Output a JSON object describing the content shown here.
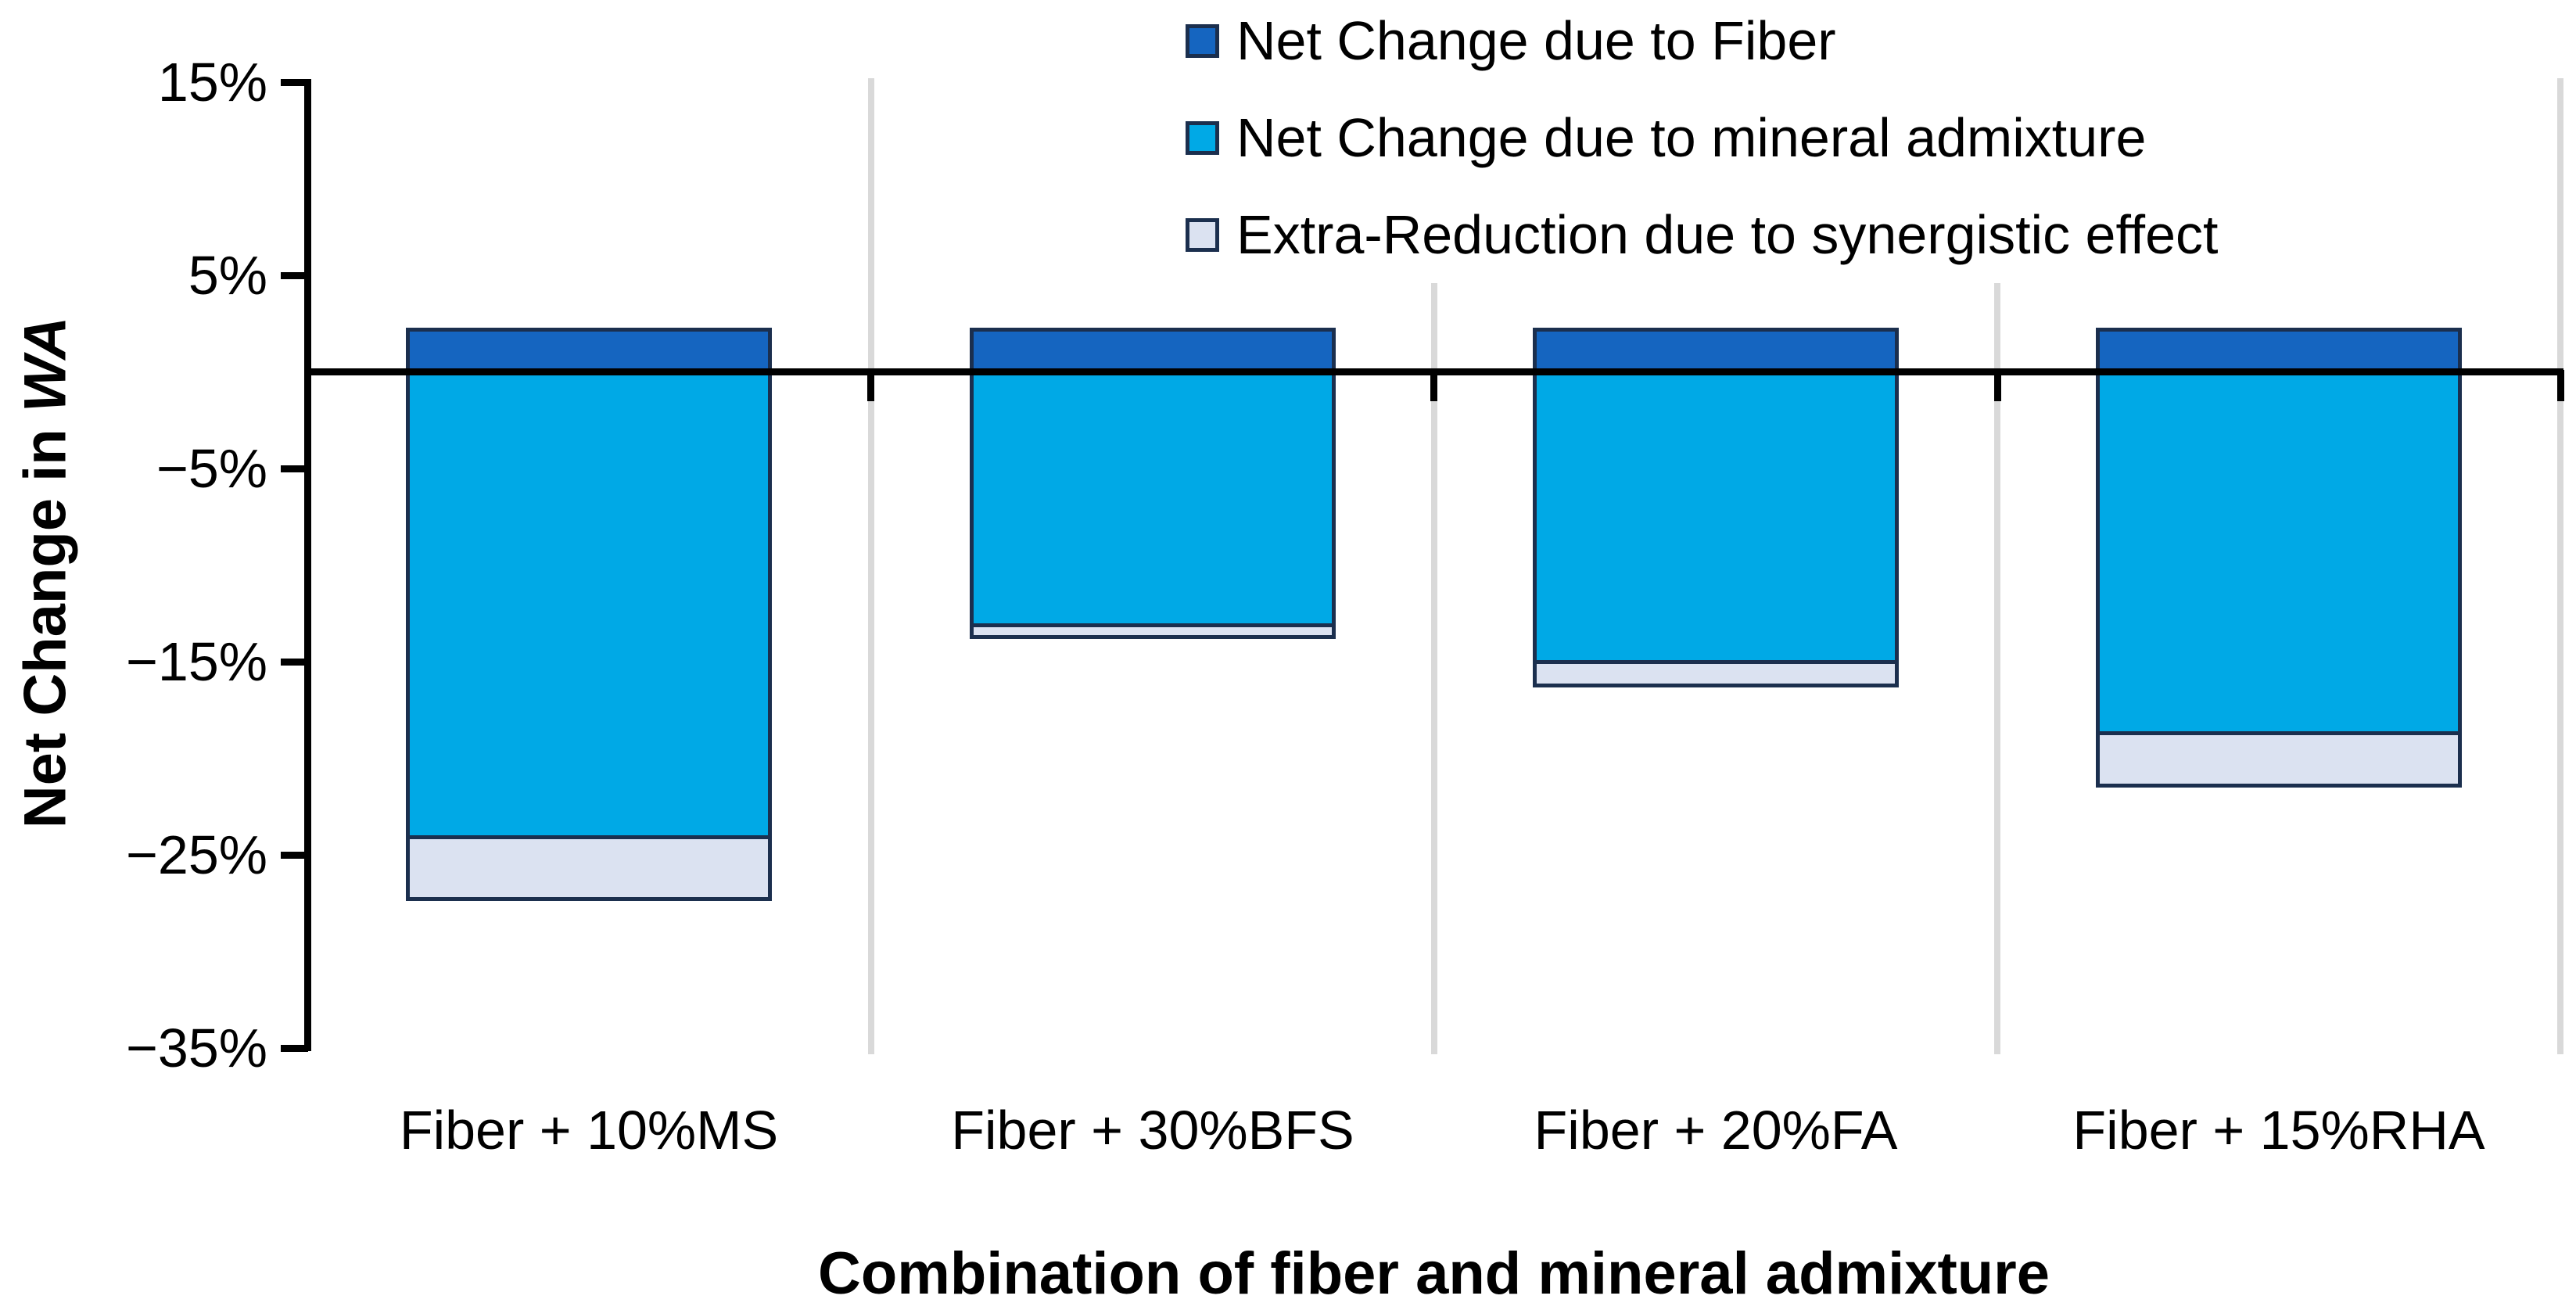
{
  "chart_data": {
    "type": "bar",
    "stacked": true,
    "title": "",
    "xlabel": "Combination of fiber and mineral admixture",
    "ylabel": "Net Change in WA",
    "ylabel_main": "Net Change in ",
    "ylabel_italic": "WA",
    "categories": [
      "Fiber + 10%MS",
      "Fiber + 30%BFS",
      "Fiber + 20%FA",
      "Fiber + 15%RHA"
    ],
    "series": [
      {
        "name": "Net Change due to Fiber",
        "color": "#1565c0",
        "values": [
          2.2,
          2.2,
          2.2,
          2.2
        ]
      },
      {
        "name": "Net Change due to mineral admixture",
        "color": "#00a9e6",
        "values": [
          -24.1,
          -13.1,
          -15.0,
          -18.7
        ]
      },
      {
        "name": "Extra-Reduction due to synergistic effect",
        "color": "#dbe2f1",
        "values": [
          -3.2,
          -0.6,
          -1.2,
          -2.7
        ]
      }
    ],
    "ylim": [
      -35,
      15
    ],
    "yticks": {
      "values": [
        15,
        5,
        -5,
        -15,
        -25,
        -35
      ],
      "labels": [
        "15%",
        "5%",
        "−5%",
        "−15%",
        "−25%",
        "−35%"
      ]
    },
    "grid": false,
    "legend_position": "top-center",
    "axis_color": "#000000",
    "bar_border_color": "#1b2f4e",
    "separator_color": "#d9d9d9",
    "background": "#ffffff"
  }
}
